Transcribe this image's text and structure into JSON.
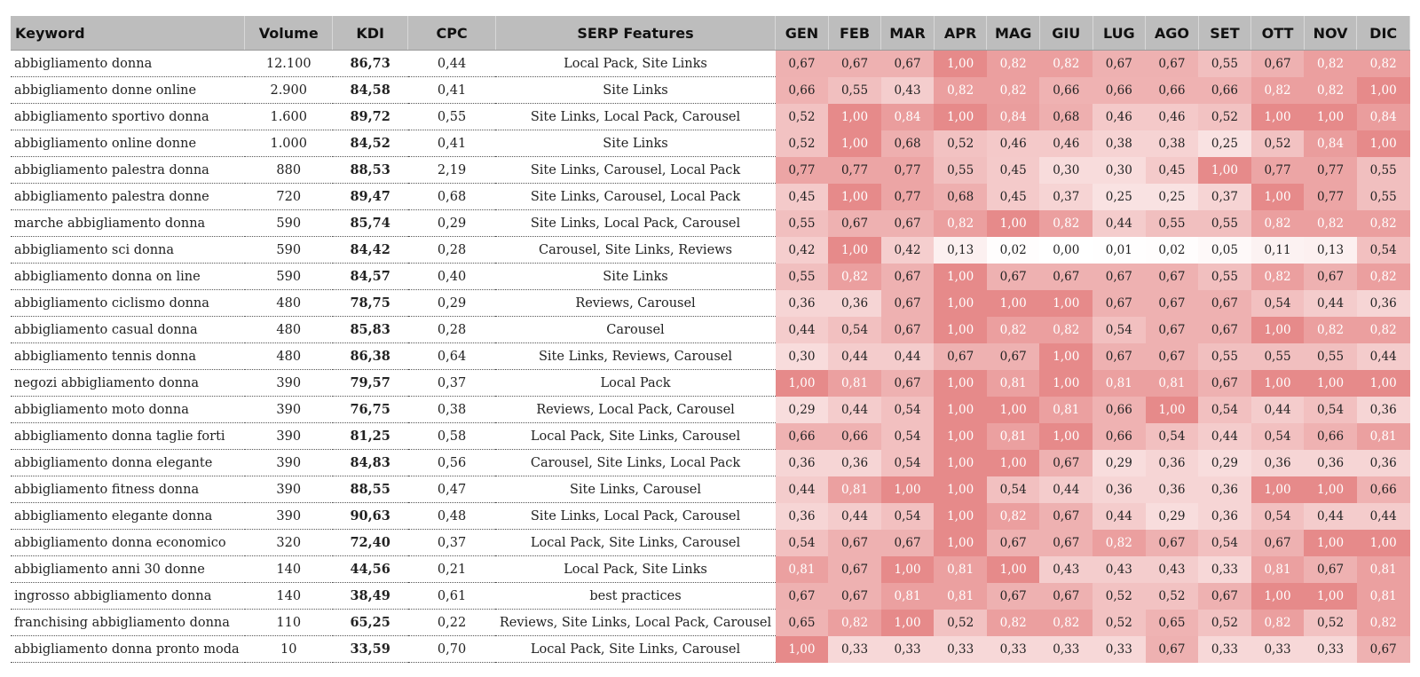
{
  "headers": [
    "Keyword",
    "Volume",
    "KDI",
    "CPC",
    "SERP Features",
    "GEN",
    "FEB",
    "MAR",
    "APR",
    "MAG",
    "GIU",
    "LUG",
    "AGO",
    "SET",
    "OTT",
    "NOV",
    "DIC"
  ],
  "heat_colors": {
    "low": "#ffffff",
    "high": "#e68a8a"
  },
  "rows": [
    {
      "keyword": "abbigliamento donna",
      "volume": "12.100",
      "kdi": "86,73",
      "cpc": "0,44",
      "serp": "Local Pack, Site Links",
      "months": [
        "0,67",
        "0,67",
        "0,67",
        "1,00",
        "0,82",
        "0,82",
        "0,67",
        "0,67",
        "0,55",
        "0,67",
        "0,82",
        "0,82"
      ]
    },
    {
      "keyword": "abbigliamento donne online",
      "volume": "2.900",
      "kdi": "84,58",
      "cpc": "0,41",
      "serp": "Site Links",
      "months": [
        "0,66",
        "0,55",
        "0,43",
        "0,82",
        "0,82",
        "0,66",
        "0,66",
        "0,66",
        "0,66",
        "0,82",
        "0,82",
        "1,00"
      ]
    },
    {
      "keyword": "abbigliamento sportivo donna",
      "volume": "1.600",
      "kdi": "89,72",
      "cpc": "0,55",
      "serp": "Site Links, Local Pack, Carousel",
      "months": [
        "0,52",
        "1,00",
        "0,84",
        "1,00",
        "0,84",
        "0,68",
        "0,46",
        "0,46",
        "0,52",
        "1,00",
        "1,00",
        "0,84"
      ]
    },
    {
      "keyword": "abbigliamento online donne",
      "volume": "1.000",
      "kdi": "84,52",
      "cpc": "0,41",
      "serp": "Site Links",
      "months": [
        "0,52",
        "1,00",
        "0,68",
        "0,52",
        "0,46",
        "0,46",
        "0,38",
        "0,38",
        "0,25",
        "0,52",
        "0,84",
        "1,00"
      ]
    },
    {
      "keyword": "abbigliamento palestra donna",
      "volume": "880",
      "kdi": "88,53",
      "cpc": "2,19",
      "serp": "Site Links, Carousel, Local Pack",
      "months": [
        "0,77",
        "0,77",
        "0,77",
        "0,55",
        "0,45",
        "0,30",
        "0,30",
        "0,45",
        "1,00",
        "0,77",
        "0,77",
        "0,55"
      ]
    },
    {
      "keyword": "abbigliamento palestra donne",
      "volume": "720",
      "kdi": "89,47",
      "cpc": "0,68",
      "serp": "Site Links, Carousel, Local Pack",
      "months": [
        "0,45",
        "1,00",
        "0,77",
        "0,68",
        "0,45",
        "0,37",
        "0,25",
        "0,25",
        "0,37",
        "1,00",
        "0,77",
        "0,55"
      ]
    },
    {
      "keyword": "marche abbigliamento donna",
      "volume": "590",
      "kdi": "85,74",
      "cpc": "0,29",
      "serp": "Site Links, Local Pack, Carousel",
      "months": [
        "0,55",
        "0,67",
        "0,67",
        "0,82",
        "1,00",
        "0,82",
        "0,44",
        "0,55",
        "0,55",
        "0,82",
        "0,82",
        "0,82"
      ]
    },
    {
      "keyword": "abbigliamento sci donna",
      "volume": "590",
      "kdi": "84,42",
      "cpc": "0,28",
      "serp": "Carousel, Site Links, Reviews",
      "months": [
        "0,42",
        "1,00",
        "0,42",
        "0,13",
        "0,02",
        "0,00",
        "0,01",
        "0,02",
        "0,05",
        "0,11",
        "0,13",
        "0,54"
      ]
    },
    {
      "keyword": "abbigliamento donna on line",
      "volume": "590",
      "kdi": "84,57",
      "cpc": "0,40",
      "serp": "Site Links",
      "months": [
        "0,55",
        "0,82",
        "0,67",
        "1,00",
        "0,67",
        "0,67",
        "0,67",
        "0,67",
        "0,55",
        "0,82",
        "0,67",
        "0,82"
      ]
    },
    {
      "keyword": "abbigliamento ciclismo donna",
      "volume": "480",
      "kdi": "78,75",
      "cpc": "0,29",
      "serp": "Reviews, Carousel",
      "months": [
        "0,36",
        "0,36",
        "0,67",
        "1,00",
        "1,00",
        "1,00",
        "0,67",
        "0,67",
        "0,67",
        "0,54",
        "0,44",
        "0,36"
      ]
    },
    {
      "keyword": "abbigliamento casual donna",
      "volume": "480",
      "kdi": "85,83",
      "cpc": "0,28",
      "serp": "Carousel",
      "months": [
        "0,44",
        "0,54",
        "0,67",
        "1,00",
        "0,82",
        "0,82",
        "0,54",
        "0,67",
        "0,67",
        "1,00",
        "0,82",
        "0,82"
      ]
    },
    {
      "keyword": "abbigliamento tennis donna",
      "volume": "480",
      "kdi": "86,38",
      "cpc": "0,64",
      "serp": "Site Links, Reviews, Carousel",
      "months": [
        "0,30",
        "0,44",
        "0,44",
        "0,67",
        "0,67",
        "1,00",
        "0,67",
        "0,67",
        "0,55",
        "0,55",
        "0,55",
        "0,44"
      ]
    },
    {
      "keyword": "negozi abbigliamento donna",
      "volume": "390",
      "kdi": "79,57",
      "cpc": "0,37",
      "serp": "Local Pack",
      "months": [
        "1,00",
        "0,81",
        "0,67",
        "1,00",
        "0,81",
        "1,00",
        "0,81",
        "0,81",
        "0,67",
        "1,00",
        "1,00",
        "1,00"
      ]
    },
    {
      "keyword": "abbigliamento moto donna",
      "volume": "390",
      "kdi": "76,75",
      "cpc": "0,38",
      "serp": "Reviews, Local Pack, Carousel",
      "months": [
        "0,29",
        "0,44",
        "0,54",
        "1,00",
        "1,00",
        "0,81",
        "0,66",
        "1,00",
        "0,54",
        "0,44",
        "0,54",
        "0,36"
      ]
    },
    {
      "keyword": "abbigliamento donna taglie forti",
      "volume": "390",
      "kdi": "81,25",
      "cpc": "0,58",
      "serp": "Local Pack, Site Links, Carousel",
      "months": [
        "0,66",
        "0,66",
        "0,54",
        "1,00",
        "0,81",
        "1,00",
        "0,66",
        "0,54",
        "0,44",
        "0,54",
        "0,66",
        "0,81"
      ]
    },
    {
      "keyword": "abbigliamento donna elegante",
      "volume": "390",
      "kdi": "84,83",
      "cpc": "0,56",
      "serp": "Carousel, Site Links, Local Pack",
      "months": [
        "0,36",
        "0,36",
        "0,54",
        "1,00",
        "1,00",
        "0,67",
        "0,29",
        "0,36",
        "0,29",
        "0,36",
        "0,36",
        "0,36"
      ]
    },
    {
      "keyword": "abbigliamento fitness donna",
      "volume": "390",
      "kdi": "88,55",
      "cpc": "0,47",
      "serp": "Site Links, Carousel",
      "months": [
        "0,44",
        "0,81",
        "1,00",
        "1,00",
        "0,54",
        "0,44",
        "0,36",
        "0,36",
        "0,36",
        "1,00",
        "1,00",
        "0,66"
      ]
    },
    {
      "keyword": "abbigliamento elegante donna",
      "volume": "390",
      "kdi": "90,63",
      "cpc": "0,48",
      "serp": "Site Links, Local Pack, Carousel",
      "months": [
        "0,36",
        "0,44",
        "0,54",
        "1,00",
        "0,82",
        "0,67",
        "0,44",
        "0,29",
        "0,36",
        "0,54",
        "0,44",
        "0,44"
      ]
    },
    {
      "keyword": "abbigliamento donna economico",
      "volume": "320",
      "kdi": "72,40",
      "cpc": "0,37",
      "serp": "Local Pack, Site Links, Carousel",
      "months": [
        "0,54",
        "0,67",
        "0,67",
        "1,00",
        "0,67",
        "0,67",
        "0,82",
        "0,67",
        "0,54",
        "0,67",
        "1,00",
        "1,00"
      ]
    },
    {
      "keyword": "abbigliamento anni 30 donne",
      "volume": "140",
      "kdi": "44,56",
      "cpc": "0,21",
      "serp": "Local Pack, Site Links",
      "months": [
        "0,81",
        "0,67",
        "1,00",
        "0,81",
        "1,00",
        "0,43",
        "0,43",
        "0,43",
        "0,33",
        "0,81",
        "0,67",
        "0,81"
      ]
    },
    {
      "keyword": "ingrosso abbigliamento donna",
      "volume": "140",
      "kdi": "38,49",
      "cpc": "0,61",
      "serp": "best practices",
      "months": [
        "0,67",
        "0,67",
        "0,81",
        "0,81",
        "0,67",
        "0,67",
        "0,52",
        "0,52",
        "0,67",
        "1,00",
        "1,00",
        "0,81"
      ]
    },
    {
      "keyword": "franchising abbigliamento donna",
      "volume": "110",
      "kdi": "65,25",
      "cpc": "0,22",
      "serp": "Reviews, Site Links, Local Pack, Carousel",
      "months": [
        "0,65",
        "0,82",
        "1,00",
        "0,52",
        "0,82",
        "0,82",
        "0,52",
        "0,65",
        "0,52",
        "0,82",
        "0,52",
        "0,82"
      ]
    },
    {
      "keyword": "abbigliamento donna pronto moda",
      "volume": "10",
      "kdi": "33,59",
      "cpc": "0,70",
      "serp": "Local Pack, Site Links, Carousel",
      "months": [
        "1,00",
        "0,33",
        "0,33",
        "0,33",
        "0,33",
        "0,33",
        "0,33",
        "0,67",
        "0,33",
        "0,33",
        "0,33",
        "0,67"
      ]
    }
  ]
}
